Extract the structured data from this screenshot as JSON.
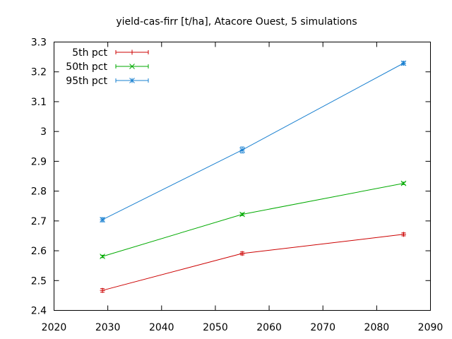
{
  "chart_data": {
    "type": "line",
    "title": "yield-cas-firr [t/ha], Atacore Ouest, 5 simulations",
    "xlabel": "",
    "ylabel": "",
    "xlim": [
      2020,
      2090
    ],
    "ylim": [
      2.4,
      3.3
    ],
    "x_ticks": [
      "2020",
      "2030",
      "2040",
      "2050",
      "2060",
      "2070",
      "2080",
      "2090"
    ],
    "y_ticks": [
      "2.4",
      "2.5",
      "2.6",
      "2.7",
      "2.8",
      "2.9",
      "3",
      "3.1",
      "3.2",
      "3.3"
    ],
    "grid": false,
    "legend_position": "top-left",
    "x": [
      2029,
      2055,
      2085
    ],
    "series": [
      {
        "name": "5th pct",
        "color": "#cc0000",
        "marker": "plus",
        "values": [
          2.467,
          2.591,
          2.655
        ],
        "errors": [
          0.006,
          0.005,
          0.005
        ]
      },
      {
        "name": "50th pct",
        "color": "#00aa00",
        "marker": "cross",
        "values": [
          2.581,
          2.722,
          2.826
        ],
        "errors": [
          0.004,
          0.004,
          0.004
        ]
      },
      {
        "name": "95th pct",
        "color": "#1a80d0",
        "marker": "star",
        "values": [
          2.704,
          2.938,
          3.229
        ],
        "errors": [
          0.007,
          0.01,
          0.006
        ]
      }
    ]
  }
}
